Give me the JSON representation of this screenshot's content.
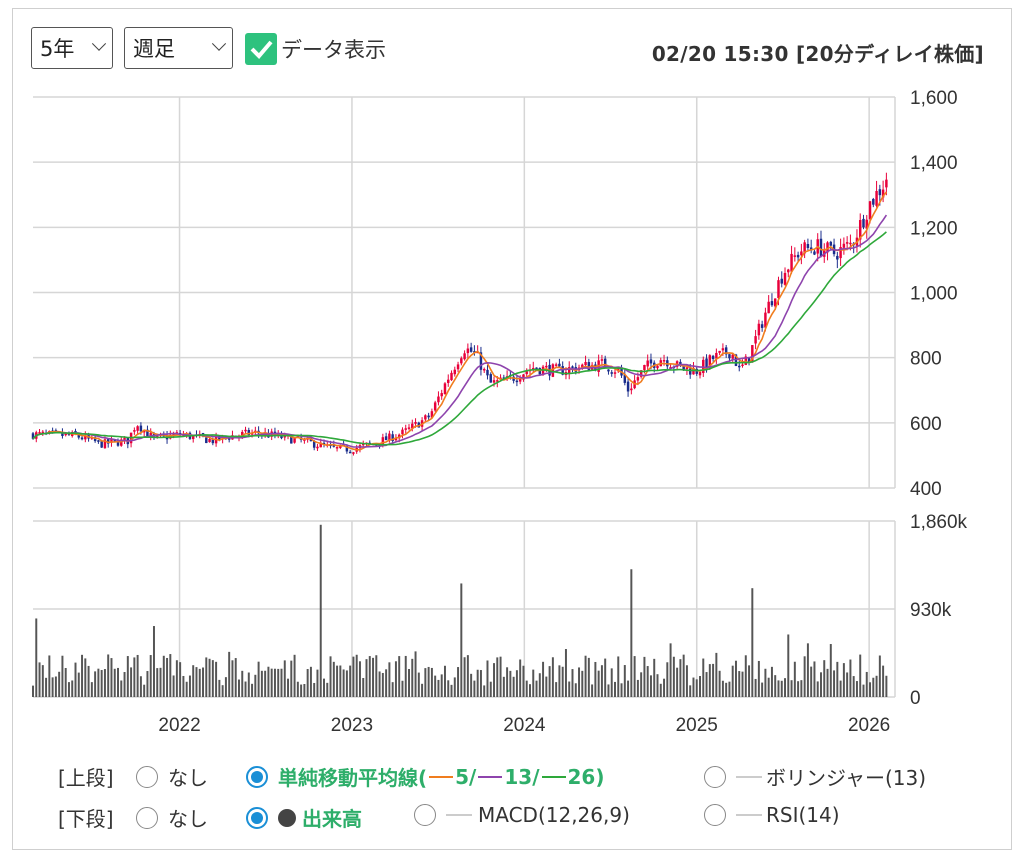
{
  "controls": {
    "period": "5年",
    "interval": "週足",
    "data_label": "データ表示",
    "timestamp": "02/20 15:30 [20分ディレイ株価]"
  },
  "chart_data": [
    {
      "type": "candlestick",
      "title": "",
      "x": [
        "2022",
        "2023",
        "2024",
        "2025",
        "2026"
      ],
      "ylim": [
        400,
        1600
      ],
      "yticks": [
        "1,600",
        "1,400",
        "1,200",
        "1,000",
        "800",
        "600",
        "400"
      ],
      "series": [
        {
          "name": "5",
          "color": "#f07d1e"
        },
        {
          "name": "13",
          "color": "#8e44ad"
        },
        {
          "name": "26",
          "color": "#2ea83a"
        }
      ],
      "anchors": [
        [
          2021.15,
          565
        ],
        [
          2021.4,
          560
        ],
        [
          2021.55,
          535
        ],
        [
          2021.7,
          545
        ],
        [
          2021.75,
          600
        ],
        [
          2021.85,
          550
        ],
        [
          2022.0,
          565
        ],
        [
          2022.2,
          545
        ],
        [
          2022.3,
          560
        ],
        [
          2022.45,
          570
        ],
        [
          2022.6,
          555
        ],
        [
          2022.75,
          540
        ],
        [
          2022.9,
          520
        ],
        [
          2023.0,
          520
        ],
        [
          2023.15,
          540
        ],
        [
          2023.3,
          570
        ],
        [
          2023.45,
          620
        ],
        [
          2023.55,
          730
        ],
        [
          2023.65,
          830
        ],
        [
          2023.72,
          810
        ],
        [
          2023.8,
          720
        ],
        [
          2023.9,
          730
        ],
        [
          2024.05,
          770
        ],
        [
          2024.2,
          760
        ],
        [
          2024.3,
          770
        ],
        [
          2024.45,
          780
        ],
        [
          2024.55,
          760
        ],
        [
          2024.6,
          700
        ],
        [
          2024.7,
          770
        ],
        [
          2024.8,
          800
        ],
        [
          2024.9,
          770
        ],
        [
          2025.0,
          760
        ],
        [
          2025.1,
          800
        ],
        [
          2025.2,
          820
        ],
        [
          2025.25,
          760
        ],
        [
          2025.3,
          800
        ],
        [
          2025.4,
          940
        ],
        [
          2025.5,
          1060
        ],
        [
          2025.6,
          1130
        ],
        [
          2025.7,
          1140
        ],
        [
          2025.8,
          1120
        ],
        [
          2025.9,
          1150
        ],
        [
          2026.0,
          1270
        ],
        [
          2026.08,
          1330
        ],
        [
          2026.12,
          1380
        ]
      ]
    },
    {
      "type": "bar",
      "title": "",
      "ylim": [
        0,
        1860
      ],
      "yticks": [
        "1,860k",
        "930k",
        "0"
      ],
      "spikes": [
        [
          2021.17,
          830
        ],
        [
          2021.85,
          750
        ],
        [
          2022.82,
          1820
        ],
        [
          2023.63,
          1200
        ],
        [
          2024.62,
          1350
        ],
        [
          2025.33,
          1150
        ]
      ]
    }
  ],
  "legend": {
    "upper": {
      "label": "[上段]",
      "none": "なし",
      "sma_prefix": "単純移動平均線(",
      "sma_5": "5/",
      "sma_13": "13/",
      "sma_26": "26)",
      "bollinger": "ボリンジャー(13)"
    },
    "lower": {
      "label": "[下段]",
      "none": "なし",
      "volume": "出来高",
      "macd": "MACD(12,26,9)",
      "rsi": "RSI(14)"
    }
  },
  "colors": {
    "up": "#e8003a",
    "down": "#1a2d8c",
    "accent": "#2ec27e",
    "radio": "#1a8fd6"
  }
}
